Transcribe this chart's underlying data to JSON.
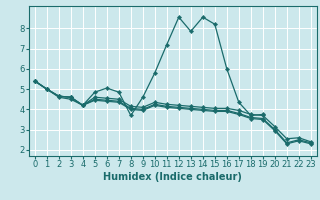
{
  "title": "",
  "xlabel": "Humidex (Indice chaleur)",
  "background_color": "#cce8ec",
  "grid_color": "#ffffff",
  "line_color": "#1a6b6b",
  "xlim": [
    -0.5,
    23.5
  ],
  "ylim": [
    1.7,
    9.1
  ],
  "lines": [
    {
      "x": [
        0,
        1,
        2,
        3,
        4,
        5,
        6,
        7,
        8,
        9,
        10,
        11,
        12,
        13,
        14,
        15,
        16,
        17,
        18,
        19
      ],
      "y": [
        5.4,
        5.0,
        4.6,
        4.5,
        4.2,
        4.85,
        5.05,
        4.85,
        3.7,
        4.6,
        5.8,
        7.2,
        8.55,
        7.85,
        8.55,
        8.2,
        6.0,
        4.35,
        3.7,
        3.75
      ]
    },
    {
      "x": [
        0,
        1,
        2,
        3,
        4,
        5,
        6,
        7,
        8,
        9,
        10,
        11,
        12,
        13,
        14,
        15,
        16,
        17,
        18,
        19,
        20,
        21,
        22,
        23
      ],
      "y": [
        5.4,
        5.0,
        4.65,
        4.6,
        4.2,
        4.6,
        4.55,
        4.5,
        4.15,
        4.1,
        4.35,
        4.25,
        4.2,
        4.15,
        4.1,
        4.05,
        4.05,
        3.95,
        3.75,
        3.7,
        3.15,
        2.55,
        2.6,
        2.4
      ]
    },
    {
      "x": [
        0,
        1,
        2,
        3,
        4,
        5,
        6,
        7,
        8,
        9,
        10,
        11,
        12,
        13,
        14,
        15,
        16,
        17,
        18,
        19,
        20,
        21,
        22,
        23
      ],
      "y": [
        5.4,
        5.0,
        4.65,
        4.6,
        4.2,
        4.5,
        4.45,
        4.4,
        4.05,
        4.0,
        4.25,
        4.15,
        4.1,
        4.05,
        4.0,
        3.95,
        3.95,
        3.8,
        3.6,
        3.55,
        3.0,
        2.35,
        2.5,
        2.35
      ]
    },
    {
      "x": [
        0,
        1,
        2,
        3,
        4,
        5,
        6,
        7,
        8,
        9,
        10,
        11,
        12,
        13,
        14,
        15,
        16,
        17,
        18,
        19,
        20,
        21,
        22,
        23
      ],
      "y": [
        5.4,
        5.0,
        4.65,
        4.6,
        4.2,
        4.45,
        4.4,
        4.35,
        4.0,
        3.95,
        4.2,
        4.1,
        4.05,
        4.0,
        3.95,
        3.9,
        3.9,
        3.75,
        3.55,
        3.5,
        2.95,
        2.3,
        2.45,
        2.3
      ]
    }
  ],
  "yticks": [
    2,
    3,
    4,
    5,
    6,
    7,
    8
  ],
  "xticks": [
    0,
    1,
    2,
    3,
    4,
    5,
    6,
    7,
    8,
    9,
    10,
    11,
    12,
    13,
    14,
    15,
    16,
    17,
    18,
    19,
    20,
    21,
    22,
    23
  ],
  "tick_fontsize": 6,
  "xlabel_fontsize": 7
}
